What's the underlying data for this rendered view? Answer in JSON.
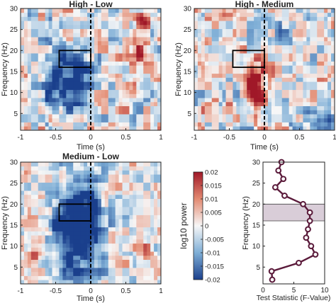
{
  "chart_data": [
    {
      "type": "heatmap",
      "title": "High - Low",
      "xlabel": "Time (s)",
      "ylabel": "Frequency (Hz)",
      "xlim": [
        -1,
        1
      ],
      "ylim": [
        1,
        30
      ],
      "xticks": [
        "-1",
        "-0.5",
        "0",
        "0.5",
        "1"
      ],
      "yticks": [
        "5",
        "10",
        "15",
        "20",
        "25",
        "30"
      ],
      "event_line_at_time": 0,
      "highlight_box": {
        "time": [
          -0.45,
          0
        ],
        "freq": [
          16,
          20
        ]
      },
      "description_of_cells": "Blue (power decrease) dominant from -0.5 to 0 s across 5-25 Hz; red patches near 0.5-0.9 s around 18-22 Hz and 27 Hz"
    },
    {
      "type": "heatmap",
      "title": "High - Medium",
      "xlabel": "Time (s)",
      "ylabel": "Frequency (Hz)",
      "xlim": [
        -1,
        1
      ],
      "ylim": [
        1,
        30
      ],
      "xticks": [
        "-1",
        "-0.5",
        "0",
        "0.5",
        "1"
      ],
      "yticks": [
        "5",
        "10",
        "15",
        "20",
        "25",
        "30"
      ],
      "event_line_at_time": 0,
      "highlight_box": {
        "time": [
          -0.45,
          0
        ],
        "freq": [
          16,
          20
        ]
      },
      "description_of_cells": "Red (power increase) streak from -0.35 to 0 s around 8-18 Hz; blue at low frequencies near 0.5-1 s"
    },
    {
      "type": "heatmap",
      "title": "Medium - Low",
      "xlabel": "Time (s)",
      "ylabel": "Frequency (Hz)",
      "xlim": [
        -1,
        1
      ],
      "ylim": [
        1,
        30
      ],
      "xticks": [
        "-1",
        "-0.5",
        "0",
        "0.5",
        "1"
      ],
      "yticks": [
        "5",
        "10",
        "15",
        "20",
        "25",
        "30"
      ],
      "event_line_at_time": 0,
      "highlight_box": {
        "time": [
          -0.45,
          0
        ],
        "freq": [
          16,
          20
        ]
      },
      "description_of_cells": "Strong blue (power decrease) from -0.6 to 0.1 s across 3-28 Hz"
    },
    {
      "type": "colorbar",
      "label": "log10 power",
      "range": [
        -0.02,
        0.02
      ],
      "ticks": [
        "0.02",
        "0.015",
        "0.01",
        "0.005",
        "0",
        "-0.005",
        "-0.01",
        "-0.015",
        "-0.02"
      ]
    },
    {
      "type": "line",
      "xlabel": "Test Statistic (F-Value)",
      "ylabel": "Frequency (Hz)",
      "xlim": [
        0,
        10
      ],
      "ylim": [
        1,
        30
      ],
      "xticks": [
        "0",
        "5",
        "10"
      ],
      "yticks": [
        "5",
        "10",
        "15",
        "20",
        "25",
        "30"
      ],
      "shaded_band_freq": [
        16,
        20
      ],
      "points": [
        {
          "f": 2,
          "x": 1.5
        },
        {
          "f": 4,
          "x": 1.4
        },
        {
          "f": 6,
          "x": 5.8
        },
        {
          "f": 8,
          "x": 8.5
        },
        {
          "f": 10,
          "x": 7.8
        },
        {
          "f": 12,
          "x": 7.0
        },
        {
          "f": 14,
          "x": 7.3
        },
        {
          "f": 16,
          "x": 7.6
        },
        {
          "f": 18,
          "x": 7.6
        },
        {
          "f": 20,
          "x": 6.5
        },
        {
          "f": 22,
          "x": 3.5
        },
        {
          "f": 24,
          "x": 2.0
        },
        {
          "f": 26,
          "x": 3.3
        },
        {
          "f": 28,
          "x": 2.5
        },
        {
          "f": 30,
          "x": 3.0
        }
      ],
      "line_color": "#5a1a3a"
    }
  ],
  "colors": {
    "negative": "#1a3f8c",
    "neutral": "#f7f7f7",
    "positive": "#a01828",
    "band": "#d9cdd8"
  }
}
